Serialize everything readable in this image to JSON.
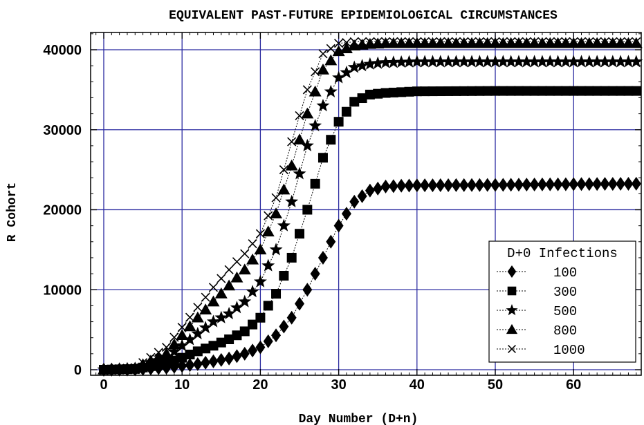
{
  "chart_data": {
    "type": "line",
    "title": "EQUIVALENT PAST-FUTURE EPIDEMIOLOGICAL CIRCUMSTANCES",
    "xlabel": "Day Number (D+n)",
    "ylabel": "R Cohort",
    "xlim": [
      -1,
      68
    ],
    "ylim": [
      -400,
      42000
    ],
    "xticks": [
      0,
      10,
      20,
      30,
      40,
      50,
      60
    ],
    "yticks": [
      0,
      10000,
      20000,
      30000,
      40000
    ],
    "grid": true,
    "legend": {
      "title": "D+0 Infections",
      "placement": "bottom-right"
    },
    "series": [
      {
        "name": "100",
        "marker": "diamond",
        "color": "#000000",
        "x": [
          0,
          4,
          8,
          12,
          16,
          18,
          20,
          22,
          24,
          26,
          28,
          30,
          32,
          34,
          36,
          38,
          40,
          50,
          60,
          68
        ],
        "y": [
          0,
          50,
          250,
          700,
          1400,
          2000,
          2800,
          4300,
          6500,
          10000,
          14000,
          18000,
          21000,
          22400,
          22900,
          23000,
          23050,
          23100,
          23200,
          23250
        ]
      },
      {
        "name": "300",
        "marker": "square",
        "color": "#000000",
        "x": [
          0,
          4,
          8,
          10,
          12,
          14,
          16,
          18,
          20,
          22,
          24,
          26,
          28,
          30,
          32,
          34,
          36,
          38,
          40,
          50,
          60,
          68
        ],
        "y": [
          0,
          100,
          800,
          1500,
          2300,
          3000,
          3800,
          4800,
          6500,
          9500,
          14000,
          20000,
          26500,
          31000,
          33500,
          34400,
          34600,
          34700,
          34800,
          34850,
          34850,
          34850
        ]
      },
      {
        "name": "500",
        "marker": "star",
        "color": "#000000",
        "x": [
          0,
          4,
          8,
          10,
          12,
          14,
          16,
          18,
          20,
          22,
          24,
          26,
          28,
          30,
          32,
          34,
          36,
          38,
          40,
          50,
          60,
          68
        ],
        "y": [
          0,
          150,
          1500,
          3000,
          4500,
          6000,
          7000,
          8500,
          11000,
          15000,
          21000,
          28000,
          33000,
          36500,
          37800,
          38200,
          38400,
          38450,
          38500,
          38500,
          38500,
          38500
        ]
      },
      {
        "name": "800",
        "marker": "triangle",
        "color": "#000000",
        "x": [
          0,
          4,
          8,
          10,
          12,
          14,
          16,
          18,
          20,
          22,
          24,
          26,
          28,
          30,
          32,
          34,
          36,
          38,
          40,
          50,
          60,
          68
        ],
        "y": [
          0,
          200,
          2000,
          4300,
          6500,
          8500,
          10500,
          12500,
          15000,
          19500,
          25500,
          32000,
          37500,
          39800,
          40500,
          40700,
          40800,
          40800,
          40800,
          40800,
          40800,
          40800
        ]
      },
      {
        "name": "1000",
        "marker": "cross",
        "color": "#000000",
        "x": [
          0,
          4,
          8,
          10,
          12,
          14,
          16,
          18,
          20,
          22,
          24,
          26,
          28,
          30,
          32,
          34,
          36,
          38,
          40,
          50,
          60,
          68
        ],
        "y": [
          0,
          250,
          2800,
          5300,
          7800,
          10300,
          12500,
          14500,
          17000,
          21500,
          28500,
          35000,
          39500,
          40800,
          41000,
          41000,
          41000,
          41000,
          41000,
          41000,
          41000,
          41000
        ]
      }
    ]
  }
}
